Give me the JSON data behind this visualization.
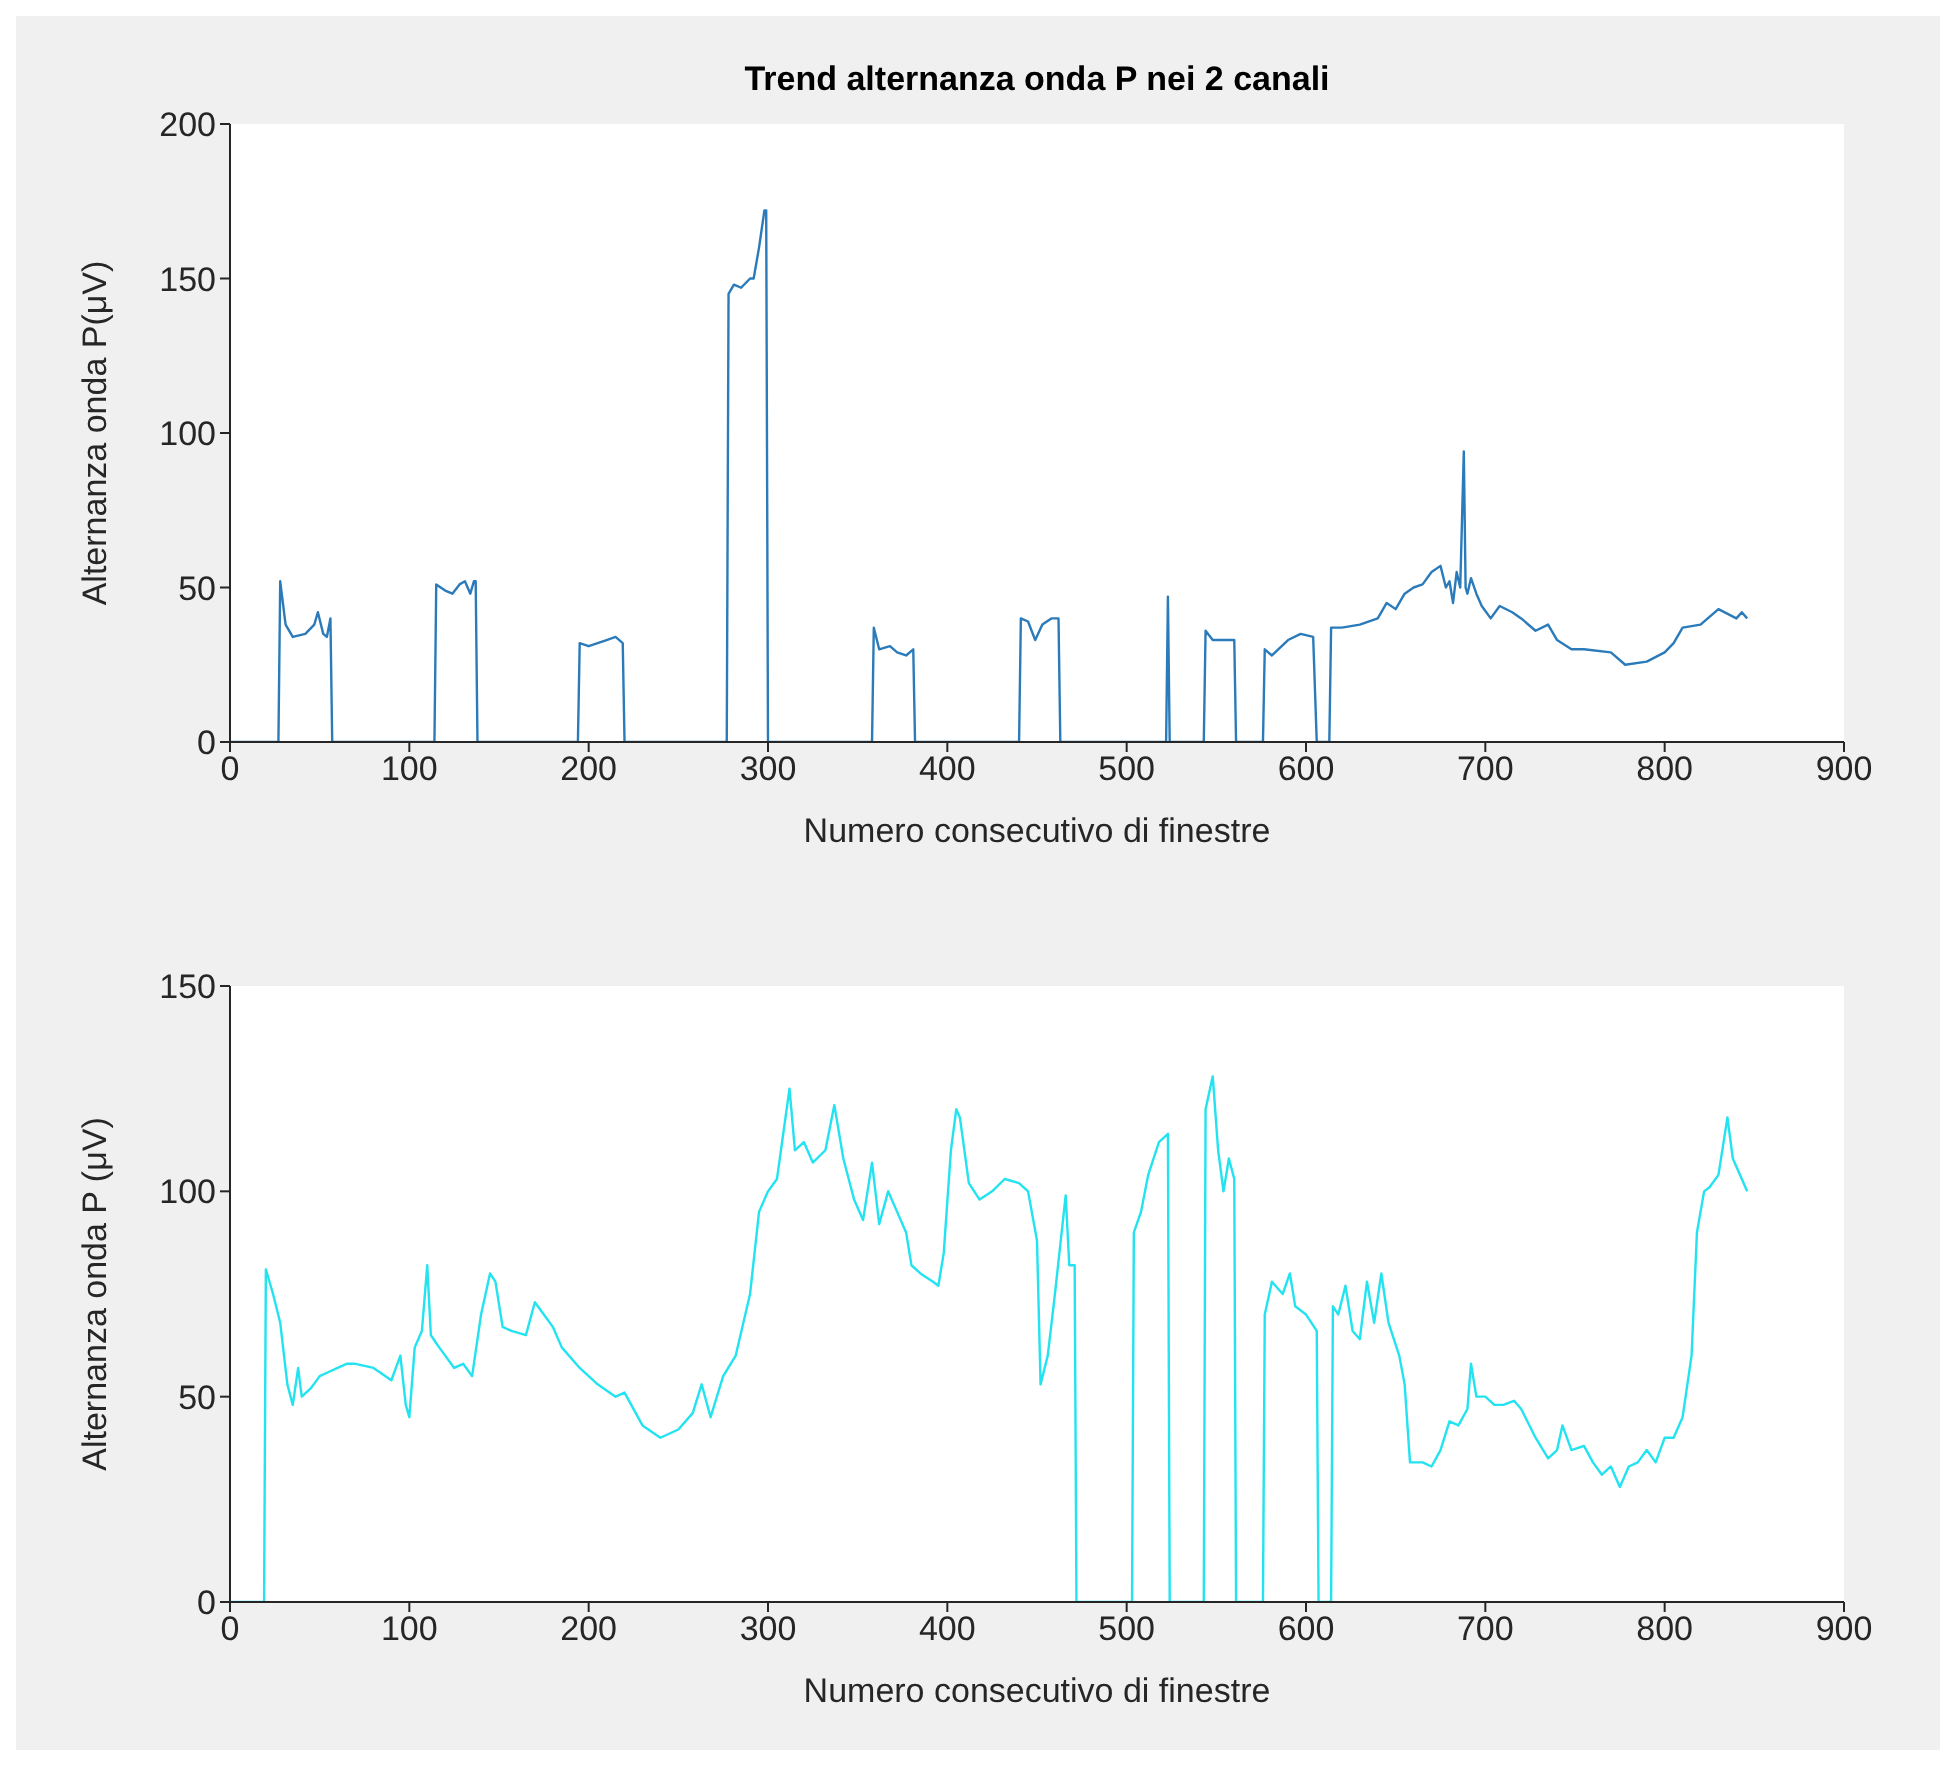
{
  "chart_data": [
    {
      "type": "line",
      "title": "Trend alternanza onda P nei 2 canali",
      "xlabel": "Numero consecutivo di finestre",
      "ylabel": "Alternanza onda P(μV)",
      "xlim": [
        0,
        900
      ],
      "xticks": [
        0,
        100,
        200,
        300,
        400,
        500,
        600,
        700,
        800,
        900
      ],
      "ylim": [
        0,
        200
      ],
      "yticks": [
        0,
        50,
        100,
        150,
        200
      ],
      "marker": "none",
      "line_style": "solid",
      "series": [
        {
          "color": "#2b7bba",
          "x": [
            0,
            27,
            28,
            31,
            35,
            42,
            47,
            49,
            52,
            54,
            56,
            57,
            114,
            115,
            120,
            124,
            128,
            131,
            134,
            136,
            137,
            138,
            194,
            195,
            200,
            210,
            215,
            219,
            220,
            277,
            278,
            281,
            285,
            290,
            292,
            295,
            298,
            299,
            300,
            358,
            359,
            362,
            368,
            372,
            377,
            381,
            382,
            440,
            441,
            445,
            449,
            453,
            458,
            462,
            463,
            522,
            523,
            524,
            543,
            544,
            548,
            552,
            556,
            560,
            561,
            576,
            577,
            581,
            590,
            597,
            604,
            606,
            613,
            614,
            620,
            630,
            640,
            645,
            650,
            655,
            660,
            665,
            670,
            675,
            678,
            680,
            682,
            684,
            686,
            688,
            689,
            690,
            692,
            695,
            698,
            703,
            708,
            715,
            720,
            728,
            735,
            740,
            748,
            755,
            770,
            778,
            790,
            800,
            805,
            810,
            820,
            830,
            840,
            843,
            846
          ],
          "values": [
            0,
            0,
            52,
            38,
            34,
            35,
            38,
            42,
            35,
            34,
            40,
            0,
            0,
            51,
            49,
            48,
            51,
            52,
            48,
            52,
            52,
            0,
            0,
            32,
            31,
            33,
            34,
            32,
            0,
            0,
            145,
            148,
            147,
            150,
            150,
            160,
            172,
            172,
            0,
            0,
            37,
            30,
            31,
            29,
            28,
            30,
            0,
            0,
            40,
            39,
            33,
            38,
            40,
            40,
            0,
            0,
            47,
            0,
            0,
            36,
            33,
            33,
            33,
            33,
            0,
            0,
            30,
            28,
            33,
            35,
            34,
            0,
            0,
            37,
            37,
            38,
            40,
            45,
            43,
            48,
            50,
            51,
            55,
            57,
            50,
            52,
            45,
            55,
            50,
            94,
            50,
            48,
            53,
            48,
            44,
            40,
            44,
            42,
            40,
            36,
            38,
            33,
            30,
            30,
            29,
            25,
            26,
            29,
            32,
            37,
            38,
            43,
            40,
            42,
            40
          ]
        }
      ]
    },
    {
      "type": "line",
      "xlabel": "Numero consecutivo di finestre",
      "ylabel": "Alternanza onda P (μV)",
      "xlim": [
        0,
        900
      ],
      "xticks": [
        0,
        100,
        200,
        300,
        400,
        500,
        600,
        700,
        800,
        900
      ],
      "ylim": [
        0,
        150
      ],
      "yticks": [
        0,
        50,
        100,
        150
      ],
      "marker": "none",
      "line_style": "solid",
      "series": [
        {
          "color": "#22e3ef",
          "x": [
            0,
            19,
            20,
            24,
            28,
            32,
            35,
            38,
            40,
            45,
            50,
            55,
            60,
            65,
            70,
            80,
            90,
            95,
            98,
            100,
            103,
            107,
            110,
            112,
            115,
            120,
            125,
            130,
            135,
            140,
            145,
            148,
            152,
            157,
            165,
            170,
            175,
            180,
            185,
            195,
            205,
            215,
            220,
            230,
            240,
            250,
            258,
            263,
            268,
            275,
            282,
            290,
            295,
            300,
            305,
            312,
            315,
            320,
            325,
            332,
            337,
            342,
            348,
            353,
            358,
            362,
            367,
            372,
            377,
            380,
            385,
            392,
            395,
            398,
            402,
            405,
            407,
            412,
            418,
            425,
            432,
            440,
            445,
            450,
            452,
            456,
            460,
            466,
            468,
            471,
            472,
            503,
            504,
            508,
            512,
            518,
            523,
            524,
            543,
            544,
            548,
            551,
            554,
            557,
            560,
            561,
            576,
            577,
            581,
            587,
            591,
            594,
            600,
            606,
            607,
            614,
            615,
            618,
            622,
            626,
            630,
            634,
            638,
            642,
            646,
            652,
            655,
            658,
            665,
            670,
            675,
            680,
            685,
            690,
            692,
            695,
            700,
            705,
            710,
            716,
            720,
            728,
            735,
            740,
            743,
            748,
            755,
            760,
            765,
            770,
            775,
            780,
            785,
            790,
            795,
            800,
            805,
            810,
            815,
            818,
            822,
            825,
            830,
            835,
            838,
            846
          ],
          "values": [
            0,
            0,
            81,
            75,
            68,
            53,
            48,
            57,
            50,
            52,
            55,
            56,
            57,
            58,
            58,
            57,
            54,
            60,
            48,
            45,
            62,
            66,
            82,
            65,
            63,
            60,
            57,
            58,
            55,
            70,
            80,
            78,
            67,
            66,
            65,
            73,
            70,
            67,
            62,
            57,
            53,
            50,
            51,
            43,
            40,
            42,
            46,
            53,
            45,
            55,
            60,
            75,
            95,
            100,
            103,
            125,
            110,
            112,
            107,
            110,
            121,
            108,
            98,
            93,
            107,
            92,
            100,
            95,
            90,
            82,
            80,
            78,
            77,
            85,
            110,
            120,
            118,
            102,
            98,
            100,
            103,
            102,
            100,
            88,
            53,
            60,
            75,
            99,
            82,
            82,
            0,
            0,
            90,
            95,
            104,
            112,
            114,
            0,
            0,
            120,
            128,
            110,
            100,
            108,
            103,
            0,
            0,
            70,
            78,
            75,
            80,
            72,
            70,
            66,
            0,
            0,
            72,
            70,
            77,
            66,
            64,
            78,
            68,
            80,
            68,
            60,
            53,
            34,
            34,
            33,
            37,
            44,
            43,
            47,
            58,
            50,
            50,
            48,
            48,
            49,
            47,
            40,
            35,
            37,
            43,
            37,
            38,
            34,
            31,
            33,
            28,
            33,
            34,
            37,
            34,
            40,
            40,
            45,
            60,
            90,
            100,
            101,
            104,
            118,
            108,
            100
          ]
        }
      ]
    }
  ]
}
